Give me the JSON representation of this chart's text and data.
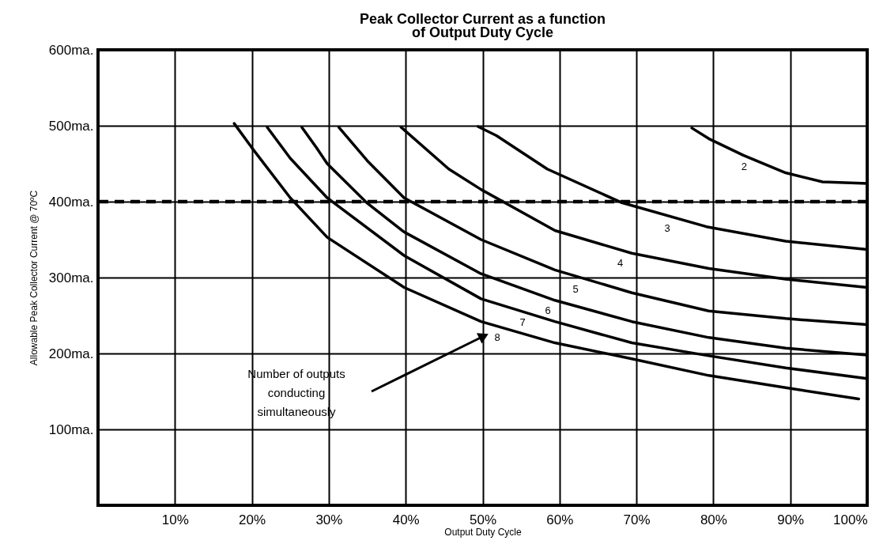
{
  "chart_data": {
    "type": "line",
    "title": "Peak Collector Current as a function of Output Duty Cycle",
    "xlabel": "Output Duty Cycle",
    "ylabel": "Allowable Peak Collector Current @ 70ºC",
    "xlim": [
      0,
      100
    ],
    "xticks": [
      {
        "value": 0,
        "label": null
      },
      {
        "value": 10,
        "label": "10%"
      },
      {
        "value": 20,
        "label": "20%"
      },
      {
        "value": 30,
        "label": "30%"
      },
      {
        "value": 40,
        "label": "40%"
      },
      {
        "value": 50,
        "label": "50%"
      },
      {
        "value": 60,
        "label": "60%"
      },
      {
        "value": 70,
        "label": "70%"
      },
      {
        "value": 80,
        "label": "80%"
      },
      {
        "value": 90,
        "label": "90%"
      },
      {
        "value": 100,
        "label": "100%"
      }
    ],
    "ylim": [
      0,
      600
    ],
    "yticks": [
      {
        "value": 0,
        "label": null
      },
      {
        "value": 100,
        "label": "100ma."
      },
      {
        "value": 200,
        "label": "200ma."
      },
      {
        "value": 300,
        "label": "300ma."
      },
      {
        "value": 400,
        "label": "400ma."
      },
      {
        "value": 500,
        "label": "500ma."
      },
      {
        "value": 600,
        "label": "600ma."
      }
    ],
    "grid": true,
    "marker": "none",
    "line_style": "solid",
    "series": [
      {
        "name": "2",
        "color": "#000000",
        "x": [
          77.2,
          79.4,
          83.9,
          89.4,
          94.2,
          100
        ],
        "values": [
          497,
          483,
          461,
          438,
          426,
          424
        ]
      },
      {
        "name": "3",
        "color": "#000000",
        "x": [
          49.4,
          51.8,
          58.4,
          68,
          79.1,
          89.4,
          100
        ],
        "values": [
          499,
          487,
          443,
          399,
          367,
          348,
          337
        ]
      },
      {
        "name": "4",
        "color": "#000000",
        "x": [
          39.4,
          45.6,
          49.8,
          59.4,
          69.4,
          79.4,
          89.4,
          100
        ],
        "values": [
          498,
          443,
          416,
          362,
          332,
          312,
          298,
          287
        ]
      },
      {
        "name": "5",
        "color": "#000000",
        "x": [
          31.3,
          35,
          39.8,
          49.8,
          59.4,
          69.4,
          79.4,
          89.4,
          100
        ],
        "values": [
          498,
          454,
          405,
          350,
          310,
          280,
          256,
          246,
          238
        ]
      },
      {
        "name": "6",
        "color": "#000000",
        "x": [
          26.5,
          28.4,
          29.8,
          35,
          39.8,
          49.8,
          59.4,
          69.4,
          79.4,
          89.4,
          100
        ],
        "values": [
          498,
          471,
          450,
          398,
          360,
          305,
          270,
          242,
          221,
          207,
          198
        ]
      },
      {
        "name": "7",
        "color": "#000000",
        "x": [
          22,
          25,
          29.8,
          39.8,
          49.8,
          59.4,
          69.4,
          79.4,
          89.4,
          100
        ],
        "values": [
          498,
          457,
          405,
          329,
          272,
          242,
          214,
          197,
          181,
          167
        ]
      },
      {
        "name": "8",
        "color": "#000000",
        "x": [
          17.7,
          20,
          25,
          29.8,
          39.8,
          49.8,
          59.4,
          69.4,
          79.4,
          89.4,
          98.9
        ],
        "values": [
          503,
          471,
          405,
          353,
          287,
          242,
          214,
          193,
          171,
          155,
          140
        ]
      }
    ],
    "ref_lines": [
      {
        "axis": "y",
        "value": 400,
        "line_style": "dashed",
        "color": "#000000"
      }
    ],
    "annotations": [
      "Number of outputs conducting simultaneously"
    ]
  }
}
